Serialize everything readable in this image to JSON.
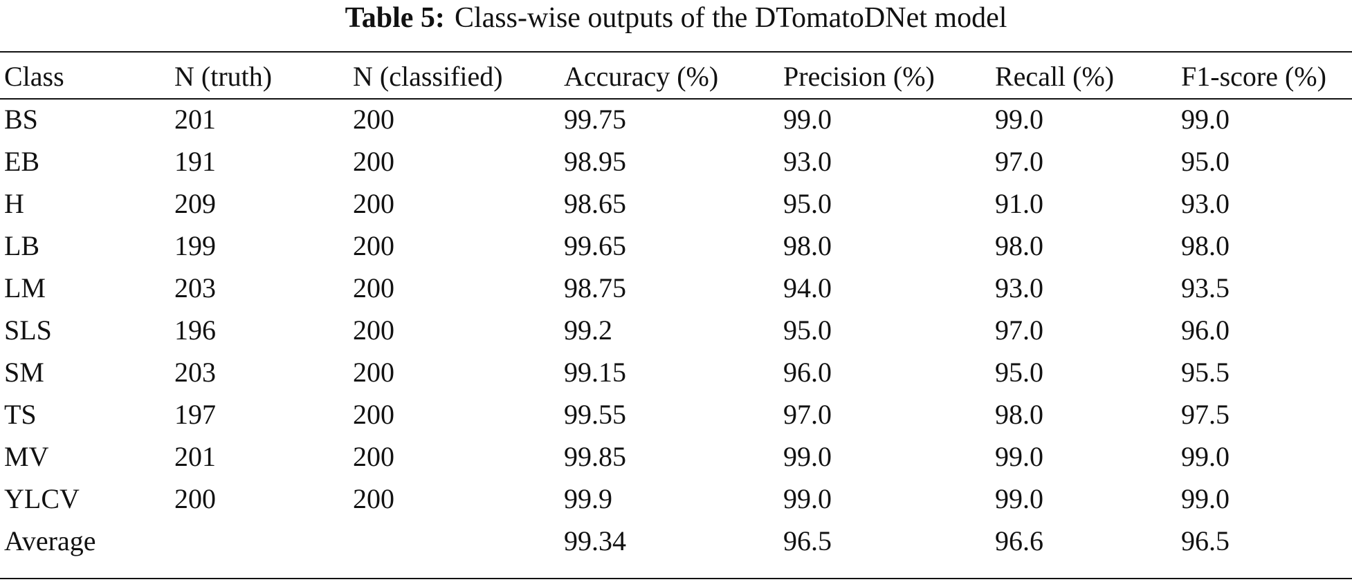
{
  "caption": {
    "label": "Table 5:",
    "text": "Class-wise outputs of the DTomatoDNet model"
  },
  "table": {
    "headers": [
      "Class",
      "N (truth)",
      "N (classified)",
      "Accuracy (%)",
      "Precision (%)",
      "Recall (%)",
      "F1-score (%)"
    ],
    "rows": [
      [
        "BS",
        "201",
        "200",
        "99.75",
        "99.0",
        "99.0",
        "99.0"
      ],
      [
        "EB",
        "191",
        "200",
        "98.95",
        "93.0",
        "97.0",
        "95.0"
      ],
      [
        "H",
        "209",
        "200",
        "98.65",
        "95.0",
        "91.0",
        "93.0"
      ],
      [
        "LB",
        "199",
        "200",
        "99.65",
        "98.0",
        "98.0",
        "98.0"
      ],
      [
        "LM",
        "203",
        "200",
        "98.75",
        "94.0",
        "93.0",
        "93.5"
      ],
      [
        "SLS",
        "196",
        "200",
        "99.2",
        "95.0",
        "97.0",
        "96.0"
      ],
      [
        "SM",
        "203",
        "200",
        "99.15",
        "96.0",
        "95.0",
        "95.5"
      ],
      [
        "TS",
        "197",
        "200",
        "99.55",
        "97.0",
        "98.0",
        "97.5"
      ],
      [
        "MV",
        "201",
        "200",
        "99.85",
        "99.0",
        "99.0",
        "99.0"
      ],
      [
        "YLCV",
        "200",
        "200",
        "99.9",
        "99.0",
        "99.0",
        "99.0"
      ],
      [
        "Average",
        "",
        "",
        "99.34",
        "96.5",
        "96.6",
        "96.5"
      ]
    ]
  }
}
